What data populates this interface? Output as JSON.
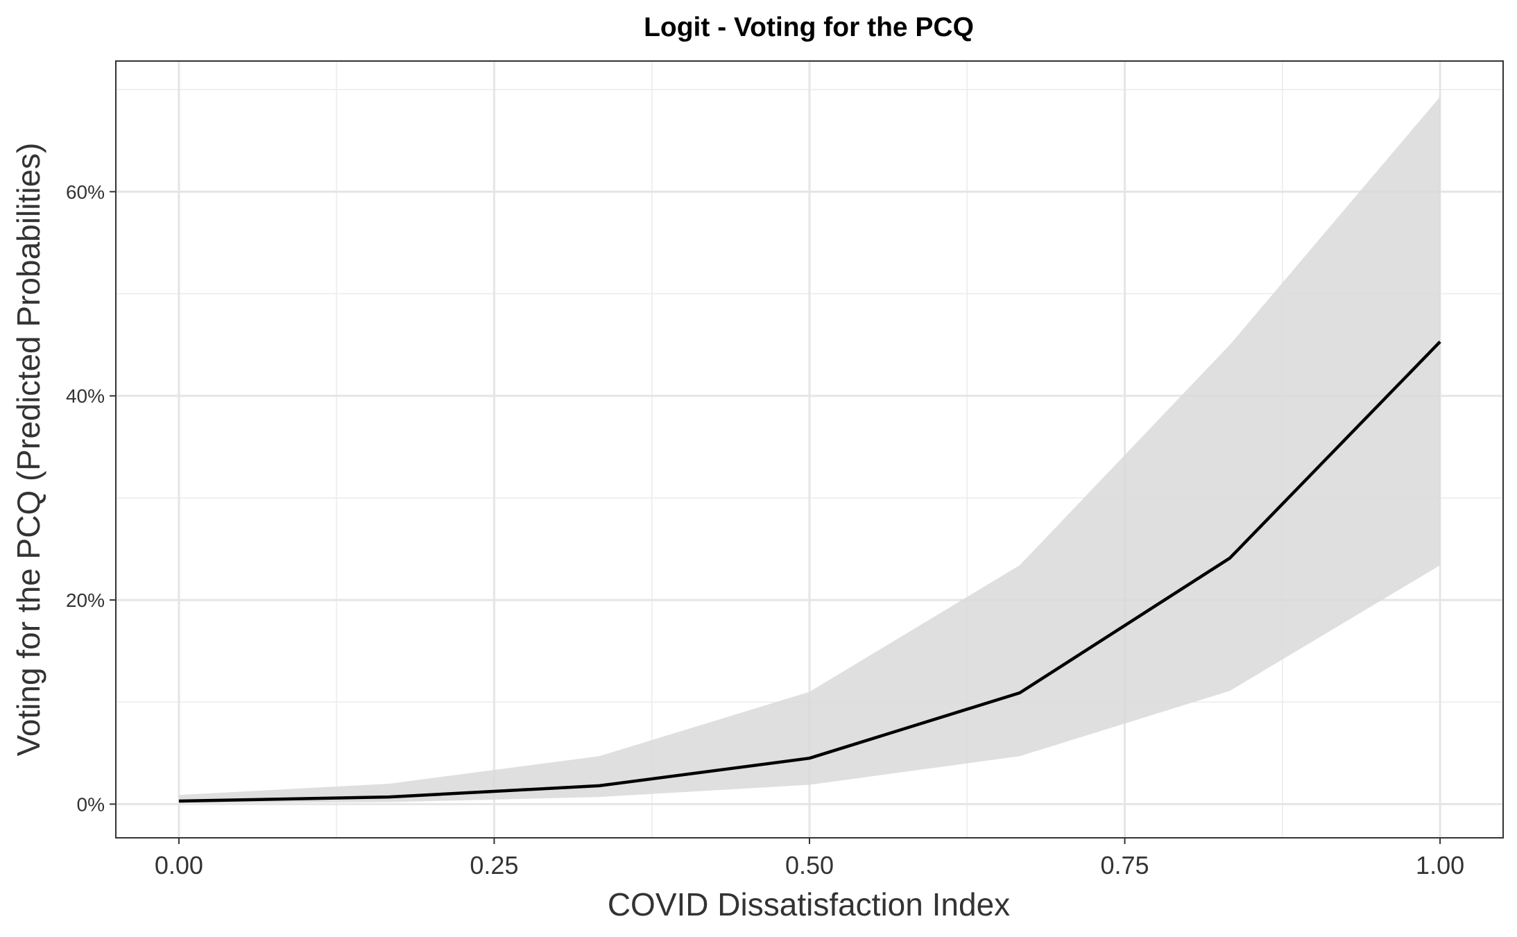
{
  "chart_data": {
    "type": "line",
    "title": "Logit - Voting for the PCQ",
    "xlabel": "COVID Dissatisfaction Index",
    "ylabel": "Voting for the PCQ (Predicted Probabilities)",
    "xlim": [
      -0.05,
      1.05
    ],
    "ylim": [
      -0.033,
      0.728
    ],
    "x_ticks": [
      0.0,
      0.25,
      0.5,
      0.75,
      1.0
    ],
    "x_tick_labels": [
      "0.00",
      "0.25",
      "0.50",
      "0.75",
      "1.00"
    ],
    "y_ticks": [
      0.0,
      0.2,
      0.4,
      0.6
    ],
    "y_tick_labels": [
      "0%",
      "20%",
      "40%",
      "60%"
    ],
    "grid": true,
    "legend": "none",
    "series": [
      {
        "x": [
          0.0,
          0.1667,
          0.3333,
          0.5,
          0.6667,
          0.8333,
          1.0
        ],
        "values": [
          0.003,
          0.007,
          0.018,
          0.045,
          0.109,
          0.241,
          0.453
        ],
        "lower": [
          0.001,
          0.002,
          0.007,
          0.019,
          0.047,
          0.111,
          0.234
        ],
        "upper": [
          0.009,
          0.02,
          0.047,
          0.11,
          0.234,
          0.45,
          0.693
        ],
        "color": "#000000",
        "band_color": "#d9d9d9"
      }
    ]
  }
}
